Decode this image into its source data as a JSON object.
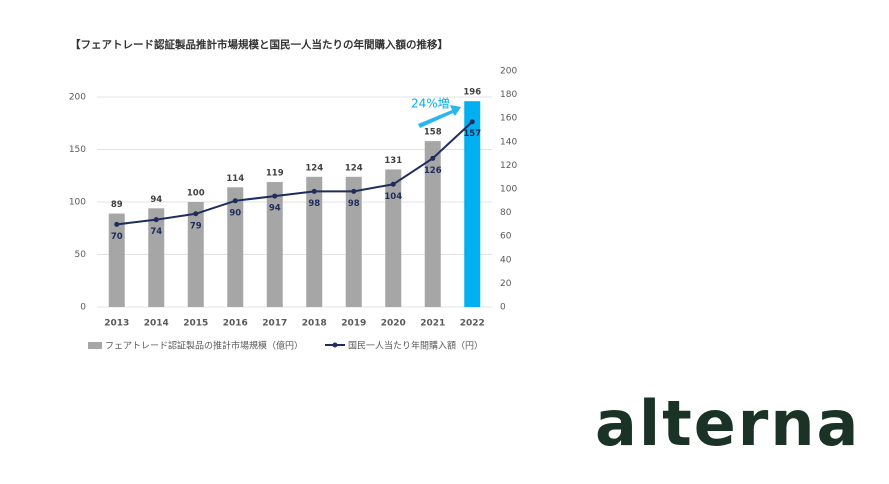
{
  "chart_data": {
    "type": "combo",
    "title": "【フェアトレード認証製品推計市場規模と国民一人当たりの年間購入額の推移】",
    "categories": [
      "2013",
      "2014",
      "2015",
      "2016",
      "2017",
      "2018",
      "2019",
      "2020",
      "2021",
      "2022"
    ],
    "series": [
      {
        "name": "フェアトレード認証製品の推計市場規模（億円）",
        "type": "bar",
        "color": "#a6a6a6",
        "colors": [
          "#a6a6a6",
          "#a6a6a6",
          "#a6a6a6",
          "#a6a6a6",
          "#a6a6a6",
          "#a6a6a6",
          "#a6a6a6",
          "#a6a6a6",
          "#a6a6a6",
          "#00b0f0"
        ],
        "values": [
          89,
          94,
          100,
          114,
          119,
          124,
          124,
          131,
          158,
          196
        ]
      },
      {
        "name": "国民一人当たり年間購入額（円）",
        "type": "line",
        "axis": "y2",
        "color": "#1f2d5c",
        "values": [
          70,
          74,
          79,
          90,
          94,
          98,
          98,
          104,
          126,
          157
        ]
      }
    ],
    "ylim": [
      0,
      200
    ],
    "yticks": [
      0,
      50,
      100,
      150,
      200
    ],
    "y2lim": [
      0,
      200
    ],
    "y2ticks": [
      0,
      20,
      40,
      60,
      80,
      100,
      120,
      140,
      160,
      180,
      200
    ],
    "grid": true,
    "annotation": "24%増"
  },
  "logo": "alterna"
}
